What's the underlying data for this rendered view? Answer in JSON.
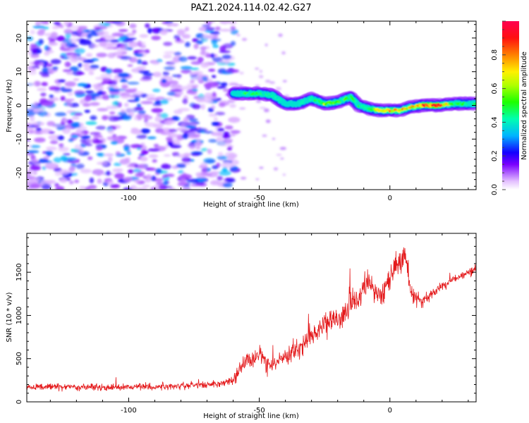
{
  "figure": {
    "title": "PAZ1.2024.114.02.42.G27"
  },
  "chart_data": [
    {
      "type": "heatmap",
      "xlabel": "Height of straight line (km)",
      "ylabel": "Frequency (Hz)",
      "xlim": [
        -139,
        33
      ],
      "ylim": [
        -25,
        25
      ],
      "xticks": [
        -100,
        -50,
        0
      ],
      "yticks": [
        -20,
        -10,
        0,
        10,
        20
      ],
      "colorbar": {
        "label": "Normalized spectral amplitude",
        "range": [
          0,
          1
        ],
        "ticks": [
          0.0,
          0.2,
          0.4,
          0.6,
          0.8
        ],
        "tick_labels": [
          "0.0",
          "0.2",
          "0.4",
          "0.6",
          "0.8"
        ],
        "colormap": "gist_rainbow_r"
      },
      "noise_region": {
        "x_range": [
          -139,
          -59
        ],
        "y_range": [
          -25,
          25
        ],
        "amplitude_range": [
          0.05,
          0.35
        ]
      },
      "signal_ridge": {
        "x": [
          -60,
          -55,
          -50,
          -45,
          -40,
          -35,
          -30,
          -25,
          -20,
          -15,
          -12,
          -8,
          -4,
          0,
          4,
          8,
          12,
          18,
          25,
          33
        ],
        "frequency": [
          3.5,
          3.5,
          3.5,
          3.0,
          0.5,
          0.5,
          2.0,
          0.5,
          1.0,
          2.5,
          0.0,
          -1.0,
          -1.5,
          -1.5,
          -1.5,
          -0.5,
          0.0,
          0.0,
          0.5,
          0.5
        ],
        "amplitude": [
          0.3,
          0.55,
          0.5,
          0.45,
          0.4,
          0.42,
          0.5,
          0.7,
          0.6,
          0.55,
          0.5,
          0.6,
          0.8,
          0.9,
          0.85,
          0.8,
          0.95,
          1.0,
          0.55,
          0.5
        ]
      }
    },
    {
      "type": "line",
      "xlabel": "Height of straight line (km)",
      "ylabel": "SNR (10 * v/v)",
      "xlim": [
        -139,
        33
      ],
      "ylim": [
        0,
        1950
      ],
      "xticks": [
        -100,
        -50,
        0
      ],
      "yticks": [
        0,
        500,
        1000,
        1500
      ],
      "series": [
        {
          "color": "#e41a1c",
          "x": [
            -139,
            -130,
            -120,
            -110,
            -100,
            -90,
            -80,
            -70,
            -65,
            -60,
            -55,
            -50,
            -45,
            -40,
            -35,
            -30,
            -25,
            -20,
            -15,
            -12,
            -8,
            -5,
            0,
            3,
            6,
            8,
            12,
            16,
            20,
            25,
            30,
            33
          ],
          "y": [
            170,
            175,
            170,
            165,
            170,
            175,
            185,
            200,
            210,
            250,
            500,
            520,
            400,
            550,
            600,
            780,
            900,
            950,
            1150,
            1200,
            1400,
            1180,
            1450,
            1600,
            1700,
            1250,
            1150,
            1250,
            1350,
            1420,
            1500,
            1520
          ],
          "noise_amplitude": [
            60,
            60,
            60,
            60,
            60,
            60,
            60,
            60,
            60,
            90,
            150,
            160,
            160,
            170,
            180,
            190,
            200,
            200,
            210,
            220,
            230,
            230,
            220,
            220,
            210,
            150,
            110,
            90,
            80,
            80,
            80,
            80
          ]
        }
      ]
    }
  ]
}
